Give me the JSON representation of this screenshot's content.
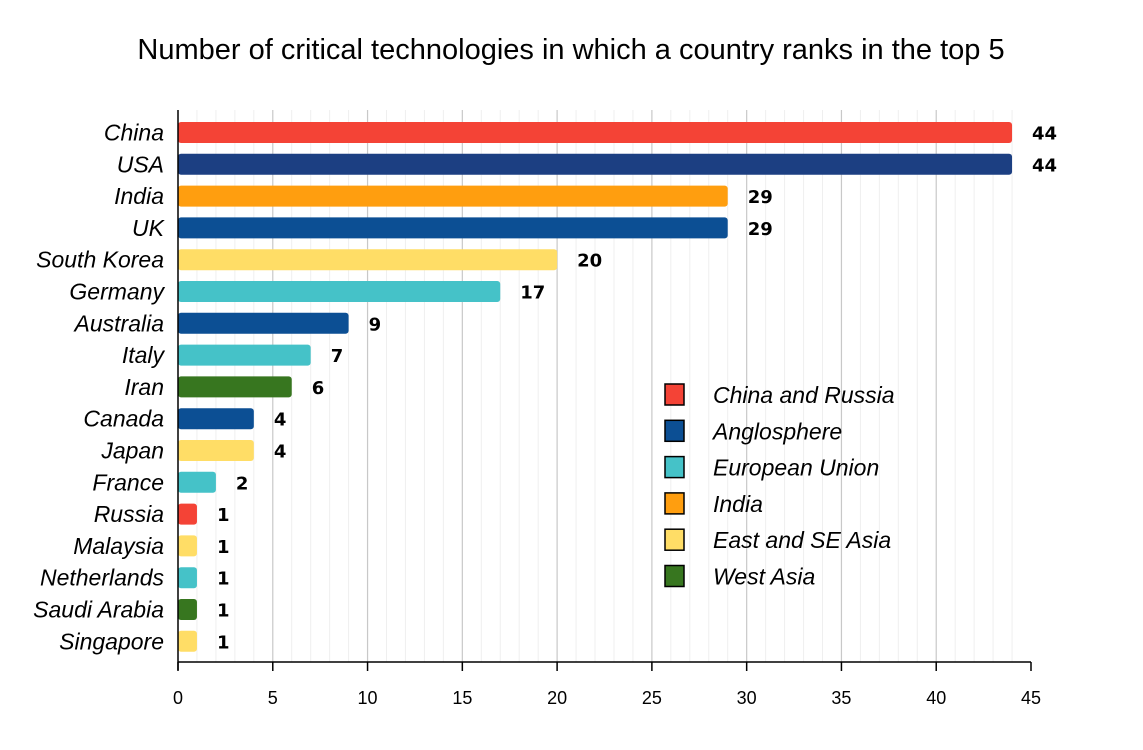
{
  "chart_data": {
    "type": "bar",
    "orientation": "horizontal",
    "title": "Number of critical technologies in which a country ranks in the top 5",
    "xlabel": "",
    "ylabel": "",
    "xlim": [
      0,
      45
    ],
    "x_ticks": [
      0,
      5,
      10,
      15,
      20,
      25,
      30,
      35,
      40,
      45
    ],
    "grid": "vertical gridlines",
    "legend_position": "right-center",
    "categories": [
      "China",
      "USA",
      "India",
      "UK",
      "South Korea",
      "Germany",
      "Australia",
      "Italy",
      "Iran",
      "Canada",
      "Japan",
      "France",
      "Russia",
      "Malaysia",
      "Netherlands",
      "Saudi Arabia",
      "Singapore"
    ],
    "values": [
      44,
      44,
      29,
      29,
      20,
      17,
      9,
      7,
      6,
      4,
      4,
      2,
      1,
      1,
      1,
      1,
      1
    ],
    "groups": [
      "China and Russia",
      "Anglosphere",
      "India",
      "Anglosphere",
      "East and SE Asia",
      "European Union",
      "Anglosphere",
      "European Union",
      "West Asia",
      "Anglosphere",
      "East and SE Asia",
      "European Union",
      "China and Russia",
      "East and SE Asia",
      "European Union",
      "West Asia",
      "East and SE Asia"
    ],
    "bar_colors": [
      "#f44336",
      "#1c3f82",
      "#ff9e0f",
      "#0c4f94",
      "#ffdd66",
      "#45c2c8",
      "#0c4f94",
      "#45c2c8",
      "#37761f",
      "#0c4f94",
      "#ffdd66",
      "#45c2c8",
      "#f44336",
      "#ffdd66",
      "#45c2c8",
      "#37761f",
      "#ffdd66"
    ],
    "legend": [
      {
        "label": "China and Russia",
        "color": "#f44336"
      },
      {
        "label": "Anglosphere",
        "color": "#0c4f94"
      },
      {
        "label": "European Union",
        "color": "#45c2c8"
      },
      {
        "label": "India",
        "color": "#ff9e0f"
      },
      {
        "label": "East and SE Asia",
        "color": "#ffdd66"
      },
      {
        "label": "West Asia",
        "color": "#37761f"
      }
    ]
  }
}
